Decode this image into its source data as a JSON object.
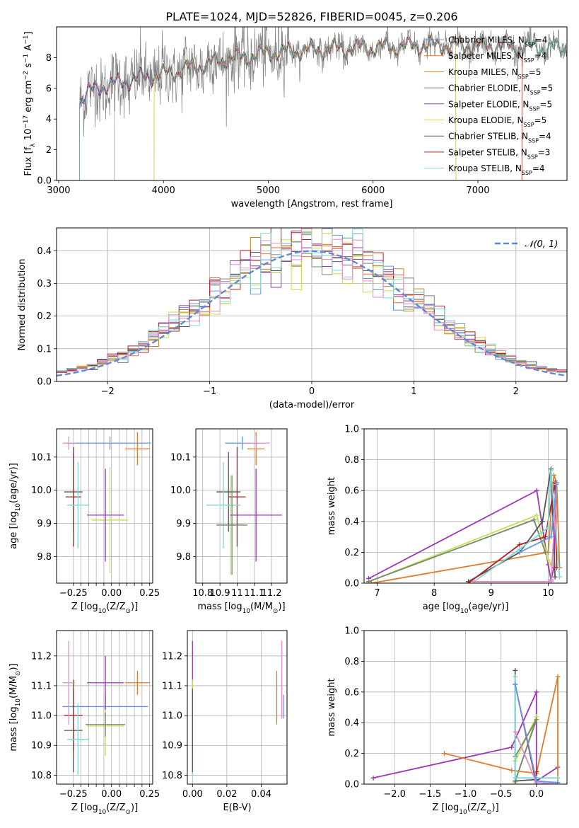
{
  "figure_title": "PLATE=1024, MJD=52826, FIBERID=0045, z=0.206",
  "colors": {
    "chabrier_miles": "#6495ed",
    "salpeter_miles": "#e07b2a",
    "kroupa_miles": "#d2791f",
    "chabrier_elodie": "#708870",
    "salpeter_elodie": "#9b36b7",
    "kroupa_elodie": "#c4e04c",
    "chabrier_stelib": "#555555",
    "salpeter_stelib": "#b22222",
    "kroupa_stelib": "#7ed6d6",
    "data": "#808080",
    "gauss": "#5b8bd6"
  },
  "legend_spectrum": [
    {
      "label": "Chabrier MILES, N",
      "sub": "SSP",
      "tail": "=4",
      "color": "#6495ed"
    },
    {
      "label": "Salpeter MILES, N",
      "sub": "SSP",
      "tail": "=4",
      "color": "#e07b2a"
    },
    {
      "label": "Kroupa MILES, N",
      "sub": "SSP",
      "tail": "=5",
      "color": "#d2791f"
    },
    {
      "label": "Chabrier ELODIE, N",
      "sub": "SSP",
      "tail": "=5",
      "color": "#708870"
    },
    {
      "label": "Salpeter ELODIE, N",
      "sub": "SSP",
      "tail": "=5",
      "color": "#9b36b7"
    },
    {
      "label": "Kroupa ELODIE, N",
      "sub": "SSP",
      "tail": "=5",
      "color": "#c4e04c"
    },
    {
      "label": "Chabrier STELIB, N",
      "sub": "SSP",
      "tail": "=4",
      "color": "#555555"
    },
    {
      "label": "Salpeter STELIB, N",
      "sub": "SSP",
      "tail": "=3",
      "color": "#b22222"
    },
    {
      "label": "Kroupa STELIB, N",
      "sub": "SSP",
      "tail": "=4",
      "color": "#7ed6d6"
    }
  ],
  "chart_data": [
    {
      "type": "line",
      "id": "spectrum",
      "xlabel": "wavelength [Angstrom, rest frame]",
      "ylabel": "Flux [f_λ 10^-17 erg cm^-2 s^-1 A^-1]",
      "xlim": [
        2980,
        7850
      ],
      "ylim": [
        0,
        10
      ],
      "xticks": [
        3000,
        4000,
        5000,
        6000,
        7000
      ],
      "yticks": [
        0,
        2,
        4,
        6,
        8
      ],
      "spectrum_envelope": {
        "x": [
          3200,
          3300,
          3400,
          3600,
          3800,
          4000,
          4300,
          4600,
          5000,
          5400,
          5800,
          6200,
          6600,
          7000,
          7400,
          7800
        ],
        "y": [
          5.2,
          5.8,
          6.1,
          6.4,
          6.7,
          6.9,
          7.4,
          7.9,
          8.3,
          8.5,
          8.6,
          8.7,
          8.8,
          8.8,
          8.7,
          8.6
        ]
      },
      "model_start_wavelengths": [
        3200,
        3530,
        3910,
        3200,
        3200,
        3910,
        3200,
        3200,
        3200
      ],
      "model_end_wavelengths": [
        7850,
        7420,
        7850,
        7850,
        6790,
        6790,
        7850,
        7420,
        7850
      ]
    },
    {
      "type": "line",
      "id": "residual_hist",
      "xlabel": "(data-model)/error",
      "ylabel": "Normed distribution",
      "xlim": [
        -2.5,
        2.5
      ],
      "ylim": [
        0,
        0.47
      ],
      "xticks": [
        -2,
        -1,
        0,
        1,
        2
      ],
      "yticks": [
        0.0,
        0.1,
        0.2,
        0.3,
        0.4
      ],
      "legend": "𝒩(0, 1)",
      "gauss_sigma": 1
    },
    {
      "type": "scatter",
      "id": "age_vs_Z",
      "xlabel": "Z [log10(Z/Z⊙)]",
      "ylabel": "age  [log10(age/yr)]",
      "xlim": [
        -0.36,
        0.27
      ],
      "ylim": [
        9.72,
        10.185
      ],
      "xticks": [
        -0.25,
        -0.2,
        -0.15,
        -0.1,
        -0.05,
        0.0,
        0.05,
        0.1,
        0.15,
        0.2,
        0.25
      ],
      "xtick_labels": [
        "−0.25",
        "",
        "",
        "",
        "",
        "0.00",
        "",
        "",
        "",
        "",
        "0.25"
      ],
      "xtick_major_text": [
        "−0.25",
        "0.00",
        "0.25"
      ],
      "yticks": [
        9.8,
        9.9,
        10.0,
        10.1
      ],
      "series": [
        {
          "x": -0.01,
          "y": 10.142,
          "xerr": 0.27,
          "yerr": 0.02,
          "color": "#6495ed"
        },
        {
          "x": 0.17,
          "y": 10.125,
          "xerr": 0.08,
          "yerr": 0.05,
          "color": "#e07b2a"
        },
        {
          "x": -0.01,
          "y": 9.91,
          "xerr": 0.12,
          "yerr": 0.16,
          "color": "#c4e04c"
        },
        {
          "x": -0.04,
          "y": 9.925,
          "xerr": 0.12,
          "yerr": 0.14,
          "color": "#9b36b7"
        },
        {
          "x": -0.25,
          "y": 9.995,
          "xerr": 0.06,
          "yerr": 0.12,
          "color": "#555555"
        },
        {
          "x": -0.25,
          "y": 9.98,
          "xerr": 0.05,
          "yerr": 0.15,
          "color": "#b22222"
        },
        {
          "x": -0.22,
          "y": 9.955,
          "xerr": 0.07,
          "yerr": 0.13,
          "color": "#7ed6d6"
        },
        {
          "x": -0.28,
          "y": 10.142,
          "xerr": 0.04,
          "yerr": 0.02,
          "color": "#e48bc8"
        }
      ]
    },
    {
      "type": "scatter",
      "id": "age_vs_mass",
      "xlabel": "mass [log10(M/M⊙)]",
      "xlim": [
        10.76,
        11.29
      ],
      "ylim": [
        9.72,
        10.185
      ],
      "xticks": [
        10.8,
        10.9,
        11.0,
        11.1,
        11.2
      ],
      "yticks": [
        9.8,
        9.9,
        10.0,
        10.1
      ],
      "series": [
        {
          "x": 11.03,
          "y": 10.142,
          "xerr": 0.1,
          "yerr": 0.02,
          "color": "#6495ed"
        },
        {
          "x": 11.11,
          "y": 10.125,
          "xerr": 0.05,
          "yerr": 0.05,
          "color": "#e07b2a"
        },
        {
          "x": 10.96,
          "y": 9.895,
          "xerr": 0.08,
          "yerr": 0.15,
          "color": "#c4e04c"
        },
        {
          "x": 11.11,
          "y": 9.925,
          "xerr": 0.15,
          "yerr": 0.14,
          "color": "#9b36b7"
        },
        {
          "x": 10.95,
          "y": 9.995,
          "xerr": 0.07,
          "yerr": 0.12,
          "color": "#555555"
        },
        {
          "x": 11.0,
          "y": 9.98,
          "xerr": 0.05,
          "yerr": 0.15,
          "color": "#b22222"
        },
        {
          "x": 10.92,
          "y": 9.955,
          "xerr": 0.1,
          "yerr": 0.13,
          "color": "#7ed6d6"
        },
        {
          "x": 11.11,
          "y": 10.142,
          "xerr": 0.08,
          "yerr": 0.02,
          "color": "#e48bc8"
        },
        {
          "x": 10.97,
          "y": 9.895,
          "xerr": 0.09,
          "yerr": 0.15,
          "color": "#708870"
        }
      ]
    },
    {
      "type": "line",
      "id": "massweight_vs_age",
      "xlabel": "age  [log10(age/yr)]",
      "ylabel": "mass weight",
      "xlim": [
        6.77,
        10.33
      ],
      "ylim": [
        0,
        1.0
      ],
      "xticks": [
        7,
        8,
        9,
        10
      ],
      "yticks": [
        0.0,
        0.2,
        0.4,
        0.6,
        0.8,
        1.0
      ],
      "series": [
        {
          "color": "#9b36b7",
          "x": [
            6.85,
            9.8,
            10.0,
            10.05,
            10.1,
            10.15
          ],
          "y": [
            0.03,
            0.6,
            0.12,
            0.02,
            0.1,
            0.65
          ]
        },
        {
          "color": "#e07b2a",
          "x": [
            6.9,
            10.0,
            10.1,
            10.15,
            10.2
          ],
          "y": [
            0.0,
            0.2,
            0.7,
            0.65,
            0.1
          ]
        },
        {
          "color": "#c4e04c",
          "x": [
            6.85,
            9.8,
            10.0,
            10.05
          ],
          "y": [
            0.01,
            0.44,
            0.15,
            0.12
          ]
        },
        {
          "color": "#708870",
          "x": [
            6.85,
            9.75,
            9.95
          ],
          "y": [
            0.01,
            0.41,
            0.2
          ]
        },
        {
          "color": "#555555",
          "x": [
            8.6,
            9.5,
            9.9,
            10.05,
            10.12
          ],
          "y": [
            0.01,
            0.2,
            0.4,
            0.74,
            0.04
          ]
        },
        {
          "color": "#b22222",
          "x": [
            8.6,
            9.5,
            9.95,
            10.12,
            10.15
          ],
          "y": [
            0.0,
            0.25,
            0.3,
            0.65,
            0.1
          ]
        },
        {
          "color": "#7ed6d6",
          "x": [
            8.7,
            9.5,
            10.0,
            10.05,
            10.2
          ],
          "y": [
            0.01,
            0.22,
            0.36,
            0.73,
            0.04
          ]
        },
        {
          "color": "#e48bc8",
          "x": [
            8.7,
            10.05,
            10.15
          ],
          "y": [
            0.01,
            0.01,
            0.64
          ]
        },
        {
          "color": "#6495ed",
          "x": [
            9.5,
            10.05,
            10.15
          ],
          "y": [
            0.2,
            0.3,
            0.65
          ]
        }
      ]
    },
    {
      "type": "scatter",
      "id": "mass_vs_Z",
      "xlabel": "Z [log10(Z/Z⊙)]",
      "ylabel": "mass [log10(M/M⊙)]",
      "xlim": [
        -0.36,
        0.27
      ],
      "ylim": [
        10.77,
        11.285
      ],
      "xticks": [
        -0.25,
        -0.2,
        -0.15,
        -0.1,
        -0.05,
        0.0,
        0.05,
        0.1,
        0.15,
        0.2,
        0.25
      ],
      "xtick_labels": [
        "−0.25",
        "",
        "",
        "",
        "",
        "0.00",
        "",
        "",
        "",
        "",
        "0.25"
      ],
      "xtick_major_text": [
        "−0.25",
        "0.00",
        "0.25"
      ],
      "yticks": [
        10.8,
        10.9,
        11.0,
        11.1,
        11.2
      ],
      "series": [
        {
          "x": -0.04,
          "y": 11.03,
          "xerr": 0.28,
          "yerr": 0.04,
          "color": "#6495ed"
        },
        {
          "x": 0.17,
          "y": 11.11,
          "xerr": 0.08,
          "yerr": 0.04,
          "color": "#e07b2a"
        },
        {
          "x": -0.04,
          "y": 10.965,
          "xerr": 0.12,
          "yerr": 0.1,
          "color": "#c4e04c"
        },
        {
          "x": -0.04,
          "y": 11.11,
          "xerr": 0.12,
          "yerr": 0.09,
          "color": "#9b36b7"
        },
        {
          "x": -0.25,
          "y": 10.95,
          "xerr": 0.06,
          "yerr": 0.14,
          "color": "#555555"
        },
        {
          "x": -0.25,
          "y": 11.0,
          "xerr": 0.06,
          "yerr": 0.12,
          "color": "#b22222"
        },
        {
          "x": -0.22,
          "y": 10.92,
          "xerr": 0.07,
          "yerr": 0.12,
          "color": "#7ed6d6"
        },
        {
          "x": -0.28,
          "y": 11.11,
          "xerr": 0.04,
          "yerr": 0.14,
          "color": "#e48bc8"
        },
        {
          "x": -0.04,
          "y": 10.97,
          "xerr": 0.13,
          "yerr": 0.04,
          "color": "#708870"
        }
      ]
    },
    {
      "type": "scatter",
      "id": "mass_vs_ebv",
      "xlabel": "E(B-V)",
      "xlim": [
        -0.003,
        0.055
      ],
      "ylim": [
        10.77,
        11.285
      ],
      "xticks": [
        0.0,
        0.02,
        0.04
      ],
      "xtick_labels": [
        "0.00",
        "0.02",
        "0.04"
      ],
      "yticks": [
        10.8,
        10.9,
        11.0,
        11.1,
        11.2
      ],
      "series": [
        {
          "x": 0.0,
          "y": 11.15,
          "yerr": 0.1,
          "color": "#9b36b7"
        },
        {
          "x": 0.0,
          "y": 11.0,
          "yerr": 0.05,
          "color": "#b22222"
        },
        {
          "x": 0.0,
          "y": 11.0,
          "yerr": 0.12,
          "color": "#c4e04c"
        },
        {
          "x": 0.0,
          "y": 10.92,
          "yerr": 0.12,
          "color": "#7ed6d6"
        },
        {
          "x": 0.0,
          "y": 10.95,
          "yerr": 0.14,
          "color": "#555555"
        },
        {
          "x": 0.049,
          "y": 11.06,
          "yerr": 0.09,
          "color": "#e07b2a"
        },
        {
          "x": 0.052,
          "y": 11.12,
          "yerr": 0.13,
          "color": "#e48bc8"
        },
        {
          "x": 0.053,
          "y": 11.03,
          "yerr": 0.04,
          "color": "#6495ed"
        }
      ]
    },
    {
      "type": "line",
      "id": "massweight_vs_Z",
      "xlabel": "Z [log10(Z/Z⊙)]",
      "ylabel": "mass weight",
      "xlim": [
        -2.43,
        0.43
      ],
      "ylim": [
        0,
        1.0
      ],
      "xticks": [
        -2.0,
        -1.5,
        -1.0,
        -0.5,
        0.0
      ],
      "xtick_labels": [
        "−2.0",
        "−1.5",
        "−1.0",
        "−0.5",
        "0.0"
      ],
      "yticks": [
        0.0,
        0.2,
        0.4,
        0.6,
        0.8,
        1.0
      ],
      "series": [
        {
          "color": "#9b36b7",
          "x": [
            -2.3,
            -0.35,
            0.0,
            0.0,
            0.3
          ],
          "y": [
            0.04,
            0.24,
            0.6,
            0.02,
            0.11
          ]
        },
        {
          "color": "#e07b2a",
          "x": [
            -1.3,
            -0.35,
            0.0,
            0.3,
            0.3
          ],
          "y": [
            0.2,
            0.09,
            0.07,
            0.7,
            0.01
          ]
        },
        {
          "color": "#c4e04c",
          "x": [
            -0.3,
            0.0,
            -0.3
          ],
          "y": [
            0.15,
            0.44,
            0.01
          ]
        },
        {
          "color": "#708870",
          "x": [
            -0.3,
            0.0,
            -0.3
          ],
          "y": [
            0.18,
            0.42,
            0.02
          ]
        },
        {
          "color": "#555555",
          "x": [
            -0.3,
            -0.3,
            0.0
          ],
          "y": [
            0.74,
            0.02,
            0.03
          ]
        },
        {
          "color": "#b22222",
          "x": [
            -0.3,
            0.0,
            0.0
          ],
          "y": [
            0.65,
            0.0,
            0.08
          ]
        },
        {
          "color": "#7ed6d6",
          "x": [
            -0.3,
            -0.3,
            0.0,
            0.3
          ],
          "y": [
            0.7,
            0.04,
            0.04,
            0.04
          ]
        },
        {
          "color": "#e48bc8",
          "x": [
            -0.3,
            0.0,
            0.3
          ],
          "y": [
            0.34,
            0.01,
            0.0
          ]
        },
        {
          "color": "#6495ed",
          "x": [
            -0.3,
            0.0,
            0.3
          ],
          "y": [
            0.65,
            0.02,
            0.01
          ]
        }
      ]
    }
  ]
}
